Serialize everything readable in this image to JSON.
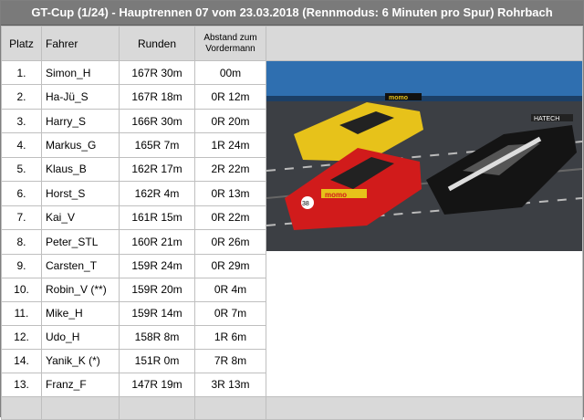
{
  "title": "GT-Cup (1/24)  -  Hauptrennen 07 vom 23.03.2018 (Rennmodus: 6 Minuten pro Spur) Rohrbach",
  "headers": {
    "place": "Platz",
    "driver": "Fahrer",
    "laps": "Runden",
    "gap": "Abstand zum Vordermann"
  },
  "rows": [
    {
      "place": "1.",
      "driver": "Simon_H",
      "laps": "167R 30m",
      "gap": "00m"
    },
    {
      "place": "2.",
      "driver": "Ha-Jü_S",
      "laps": "167R 18m",
      "gap": "0R 12m"
    },
    {
      "place": "3.",
      "driver": "Harry_S",
      "laps": "166R 30m",
      "gap": "0R 20m"
    },
    {
      "place": "4.",
      "driver": "Markus_G",
      "laps": "165R 7m",
      "gap": "1R 24m"
    },
    {
      "place": "5.",
      "driver": "Klaus_B",
      "laps": "162R 17m",
      "gap": "2R 22m"
    },
    {
      "place": "6.",
      "driver": "Horst_S",
      "laps": "162R 4m",
      "gap": "0R 13m"
    },
    {
      "place": "7.",
      "driver": "Kai_V",
      "laps": "161R 15m",
      "gap": "0R 22m"
    },
    {
      "place": "8.",
      "driver": "Peter_STL",
      "laps": "160R 21m",
      "gap": "0R 26m"
    },
    {
      "place": "9.",
      "driver": "Carsten_T",
      "laps": "159R 24m",
      "gap": "0R 29m"
    },
    {
      "place": "10.",
      "driver": "Robin_V (**)",
      "laps": "159R 20m",
      "gap": "0R 4m"
    },
    {
      "place": "11.",
      "driver": "Mike_H",
      "laps": "159R 14m",
      "gap": "0R 7m"
    },
    {
      "place": "12.",
      "driver": "Udo_H",
      "laps": "158R 8m",
      "gap": "1R 6m"
    },
    {
      "place": "14.",
      "driver": "Yanik_K (*)",
      "laps": "151R 0m",
      "gap": "7R 8m"
    },
    {
      "place": "13.",
      "driver": "Franz_F",
      "laps": "147R 19m",
      "gap": "3R 13m"
    }
  ],
  "photo": {
    "car_left_text": "momo",
    "car_center_text": "momo",
    "car_right_text": "HATECH",
    "car_center_number": "38"
  }
}
